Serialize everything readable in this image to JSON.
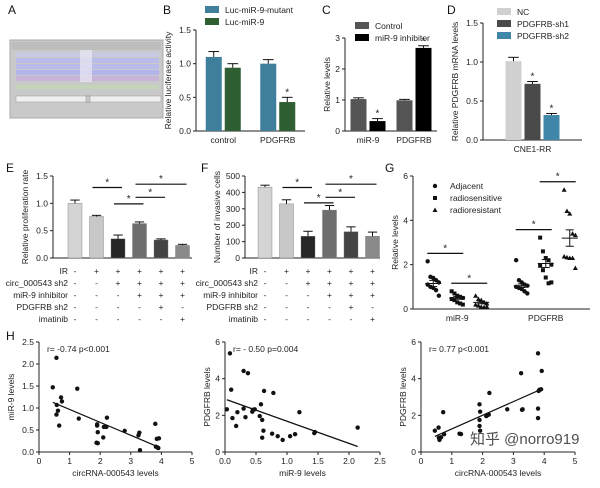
{
  "panel_labels": [
    "A",
    "B",
    "C",
    "D",
    "E",
    "F",
    "G",
    "H"
  ],
  "watermark": "知乎 @norro919",
  "chart_data": [
    {
      "id": "A",
      "type": "image",
      "description_visible": "sequence alignment screenshot"
    },
    {
      "id": "B",
      "type": "bar",
      "ylabel": "Relative luciferase activity",
      "ylim": [
        0,
        1.5
      ],
      "yticks": [
        0.0,
        0.5,
        1.0,
        1.5
      ],
      "tick_decimals": 1,
      "categories": [
        "control",
        "PDGFRB"
      ],
      "series": [
        {
          "name": "Luc-miR-9-mutant",
          "color": "#3f7f9c",
          "values": [
            1.1,
            1.0
          ],
          "errors": [
            0.08,
            0.06
          ]
        },
        {
          "name": "Luc-miR-9",
          "color": "#2e5e32",
          "values": [
            0.94,
            0.43
          ],
          "errors": [
            0.06,
            0.07
          ]
        }
      ],
      "stars": [
        [
          1,
          1
        ]
      ],
      "legend": "top"
    },
    {
      "id": "C",
      "type": "bar",
      "ylabel": "Relative  levels",
      "ylim": [
        0,
        3
      ],
      "yticks": [
        0,
        1,
        2,
        3
      ],
      "tick_decimals": 0,
      "categories": [
        "miR-9",
        "PDGFRB"
      ],
      "series": [
        {
          "name": "Control",
          "color": "#555555",
          "values": [
            1.03,
            0.99
          ],
          "errors": [
            0.04,
            0.03
          ]
        },
        {
          "name": "miR-9 inhibitor",
          "color": "#000000",
          "values": [
            0.32,
            2.68
          ],
          "errors": [
            0.08,
            0.07
          ]
        }
      ],
      "stars": [
        [
          1,
          0
        ],
        [
          1,
          1
        ]
      ],
      "legend": "top"
    },
    {
      "id": "D",
      "type": "bar",
      "ylabel": "Relative PDGFRB mRNA levels",
      "ylim": [
        0,
        1.5
      ],
      "yticks": [
        0.0,
        0.5,
        1.0,
        1.5
      ],
      "tick_decimals": 1,
      "categories": [
        "CNE1-RR"
      ],
      "series": [
        {
          "name": "NC",
          "color": "#d0d0d0",
          "values": [
            1.01
          ],
          "errors": [
            0.05
          ]
        },
        {
          "name": "PDGFRB-sh1",
          "color": "#4a4a4a",
          "values": [
            0.72
          ],
          "errors": [
            0.03
          ]
        },
        {
          "name": "PDGFRB-sh2",
          "color": "#3f86a8",
          "values": [
            0.32
          ],
          "errors": [
            0.02
          ]
        }
      ],
      "stars": [
        [
          1,
          0
        ],
        [
          2,
          0
        ]
      ],
      "legend": "top"
    },
    {
      "id": "E",
      "type": "bar",
      "ylabel": "Relative proliferation rate",
      "ylim": [
        0,
        1.5
      ],
      "yticks": [
        0.0,
        0.5,
        1.0,
        1.5
      ],
      "tick_decimals": 1,
      "values": [
        1.0,
        0.76,
        0.35,
        0.63,
        0.33,
        0.23
      ],
      "errors": [
        0.06,
        0.02,
        0.07,
        0.03,
        0.02,
        0.02
      ],
      "colors": [
        "#d4d4d4",
        "#c8c8c8",
        "#262626",
        "#6e6e6e",
        "#444444",
        "#8a8a8a"
      ],
      "significance": [
        [
          1,
          2
        ],
        [
          2,
          3
        ],
        [
          3,
          4
        ],
        [
          3,
          5
        ]
      ]
    },
    {
      "id": "F",
      "type": "bar",
      "ylabel": "Number of invasive cells",
      "ylim": [
        0,
        500
      ],
      "yticks": [
        0,
        100,
        200,
        300,
        400,
        500
      ],
      "tick_decimals": 0,
      "values": [
        432,
        330,
        133,
        292,
        160,
        133
      ],
      "errors": [
        12,
        25,
        30,
        28,
        30,
        25
      ],
      "colors": [
        "#d4d4d4",
        "#c8c8c8",
        "#262626",
        "#6e6e6e",
        "#444444",
        "#8a8a8a"
      ],
      "significance": [
        [
          1,
          2
        ],
        [
          2,
          3
        ],
        [
          3,
          4
        ],
        [
          3,
          5
        ]
      ]
    },
    {
      "id": "G",
      "type": "scatter",
      "ylabel": "Relative levels",
      "ylim": [
        0,
        6
      ],
      "yticks": [
        0,
        2,
        4,
        6
      ],
      "tick_decimals": 0,
      "categories": [
        "miR-9",
        "PDGFRB"
      ],
      "series": [
        {
          "name": "Adjacent",
          "marker": "circle",
          "means": [
            1.15,
            1.05
          ],
          "sem": [
            0.14,
            0.08
          ],
          "points": [
            [
              2.15,
              1.45,
              1.4,
              1.3,
              1.2,
              1.1,
              1.0,
              0.95,
              0.85,
              0.6
            ],
            [
              2.2,
              1.3,
              1.2,
              1.1,
              1.05,
              1.0,
              0.95,
              0.9,
              0.8,
              0.7
            ]
          ]
        },
        {
          "name": "radiosensitive",
          "marker": "square",
          "means": [
            0.5,
            2.05
          ],
          "sem": [
            0.06,
            0.18
          ],
          "points": [
            [
              0.8,
              0.7,
              0.6,
              0.55,
              0.5,
              0.45,
              0.4,
              0.3,
              0.25,
              0.2
            ],
            [
              3.22,
              2.6,
              2.3,
              2.2,
              2.0,
              1.95,
              1.75,
              1.42,
              1.16,
              1.2
            ]
          ]
        },
        {
          "name": "radioresistant",
          "marker": "triangle",
          "means": [
            0.3,
            3.2
          ],
          "sem": [
            0.06,
            0.37
          ],
          "points": [
            [
              0.6,
              0.45,
              0.4,
              0.3,
              0.25,
              0.2,
              0.15,
              0.1,
              0.08,
              0.1
            ],
            [
              5.38,
              4.42,
              4.3,
              3.4,
              3.33,
              2.37,
              2.33,
              2.3,
              2.3,
              1.85
            ]
          ]
        }
      ],
      "significance": [
        [
          0,
          0,
          1
        ],
        [
          0,
          1,
          2
        ],
        [
          1,
          0,
          1
        ],
        [
          1,
          1,
          2
        ]
      ],
      "legend": "top-left"
    },
    {
      "id": "H1",
      "type": "scatter",
      "annotation": "r= -0.74  p<0.001",
      "xlabel": "circRNA-000543 levels",
      "ylabel": "miR-9 levels",
      "xlim": [
        0,
        5
      ],
      "xticks": [
        0,
        1,
        2,
        3,
        4,
        5
      ],
      "ylim": [
        0,
        2.5
      ],
      "yticks": [
        0.0,
        0.5,
        1.0,
        1.5,
        2.0,
        2.5
      ],
      "ytick_decimals": 1,
      "xtick_decimals": 0,
      "points": [
        [
          0.45,
          1.47
        ],
        [
          0.57,
          2.14
        ],
        [
          0.58,
          1.07
        ],
        [
          0.62,
          0.94
        ],
        [
          0.57,
          0.85
        ],
        [
          0.66,
          0.6
        ],
        [
          0.72,
          1.24
        ],
        [
          0.75,
          1.15
        ],
        [
          1.25,
          1.44
        ],
        [
          1.3,
          0.76
        ],
        [
          1.9,
          0.6
        ],
        [
          1.9,
          0.63
        ],
        [
          1.92,
          0.45
        ],
        [
          1.88,
          0.21
        ],
        [
          1.92,
          0.2
        ],
        [
          2.1,
          0.33
        ],
        [
          2.12,
          0.57
        ],
        [
          2.2,
          0.57
        ],
        [
          2.22,
          0.78
        ],
        [
          2.8,
          0.48
        ],
        [
          3.25,
          0.38
        ],
        [
          3.28,
          0.44
        ],
        [
          3.3,
          0.04
        ],
        [
          3.8,
          0.64
        ],
        [
          3.82,
          0.12
        ],
        [
          3.85,
          0.3
        ],
        [
          3.88,
          0.1
        ],
        [
          3.92,
          0.31
        ],
        [
          3.9,
          0.09
        ]
      ],
      "fit": [
        [
          0.45,
          1.13
        ],
        [
          3.85,
          0.13
        ]
      ]
    },
    {
      "id": "H2",
      "type": "scatter",
      "annotation": "r= - 0.50  p=0.004",
      "xlabel": "miR-9 levels",
      "ylabel": "PDGFRB levels",
      "xlim": [
        0,
        2.5
      ],
      "xticks": [
        0.0,
        0.5,
        1.0,
        1.5,
        2.0,
        2.5
      ],
      "ylim": [
        0,
        6
      ],
      "yticks": [
        0,
        2,
        4,
        6
      ],
      "ytick_decimals": 0,
      "xtick_decimals": 1,
      "points": [
        [
          0.03,
          2.33
        ],
        [
          0.08,
          5.38
        ],
        [
          0.1,
          3.4
        ],
        [
          0.12,
          1.85
        ],
        [
          0.18,
          1.42
        ],
        [
          0.2,
          2.17
        ],
        [
          0.3,
          2.37
        ],
        [
          0.3,
          4.42
        ],
        [
          0.33,
          1.9
        ],
        [
          0.37,
          4.3
        ],
        [
          0.44,
          2.2
        ],
        [
          0.45,
          2.3
        ],
        [
          0.48,
          2.33
        ],
        [
          0.58,
          2.6
        ],
        [
          0.56,
          1.96
        ],
        [
          0.6,
          1.75
        ],
        [
          0.6,
          0.78
        ],
        [
          0.62,
          1.16
        ],
        [
          0.63,
          3.33
        ],
        [
          0.76,
          1.0
        ],
        [
          0.78,
          3.22
        ],
        [
          0.85,
          0.86
        ],
        [
          0.93,
          0.66
        ],
        [
          1.05,
          0.86
        ],
        [
          1.13,
          0.97
        ],
        [
          1.2,
          2.17
        ],
        [
          1.44,
          1.03
        ],
        [
          1.45,
          1.09
        ],
        [
          2.14,
          1.33
        ]
      ],
      "fit": [
        [
          0.03,
          2.85
        ],
        [
          2.14,
          0.3
        ]
      ]
    },
    {
      "id": "H3",
      "type": "scatter",
      "annotation": "r= 0.77  p<0.001",
      "xlabel": "circRNA-000543 levels",
      "ylabel": "PDGFRB levels",
      "xlim": [
        0,
        5
      ],
      "xticks": [
        0,
        1,
        2,
        3,
        4,
        5
      ],
      "ylim": [
        0,
        6
      ],
      "yticks": [
        0,
        2,
        4,
        6
      ],
      "ytick_decimals": 0,
      "xtick_decimals": 0,
      "points": [
        [
          0.45,
          1.16
        ],
        [
          0.57,
          1.33
        ],
        [
          0.58,
          0.78
        ],
        [
          0.6,
          0.66
        ],
        [
          0.65,
          0.8
        ],
        [
          0.72,
          2.17
        ],
        [
          0.75,
          0.97
        ],
        [
          1.25,
          1.0
        ],
        [
          1.3,
          0.98
        ],
        [
          1.9,
          2.6
        ],
        [
          1.92,
          2.2
        ],
        [
          1.9,
          1.75
        ],
        [
          1.9,
          1.42
        ],
        [
          1.92,
          1.16
        ],
        [
          2.12,
          1.96
        ],
        [
          2.15,
          2.0
        ],
        [
          2.2,
          2.04
        ],
        [
          2.22,
          3.22
        ],
        [
          2.8,
          2.33
        ],
        [
          3.25,
          4.3
        ],
        [
          3.28,
          2.3
        ],
        [
          3.3,
          2.33
        ],
        [
          3.8,
          5.38
        ],
        [
          3.82,
          3.33
        ],
        [
          3.85,
          3.4
        ],
        [
          3.9,
          3.42
        ],
        [
          3.92,
          4.42
        ],
        [
          3.8,
          2.37
        ],
        [
          3.8,
          1.85
        ]
      ],
      "fit": [
        [
          0.45,
          0.85
        ],
        [
          3.9,
          3.42
        ]
      ]
    }
  ],
  "conditions": {
    "rows": [
      {
        "label": "IR",
        "signs": [
          "-",
          "+",
          "+",
          "+",
          "+",
          "+"
        ]
      },
      {
        "label": "circ_000543 sh2",
        "signs": [
          "-",
          "-",
          "+",
          "+",
          "+",
          "+"
        ]
      },
      {
        "label": "miR-9 inhibitor",
        "signs": [
          "-",
          "-",
          "-",
          "+",
          "+",
          "+"
        ]
      },
      {
        "label": "PDGFRB sh2",
        "signs": [
          "-",
          "-",
          "-",
          "-",
          "+",
          "-"
        ]
      },
      {
        "label": "imatinib",
        "signs": [
          "-",
          "-",
          "-",
          "-",
          "-",
          "+"
        ]
      }
    ]
  }
}
